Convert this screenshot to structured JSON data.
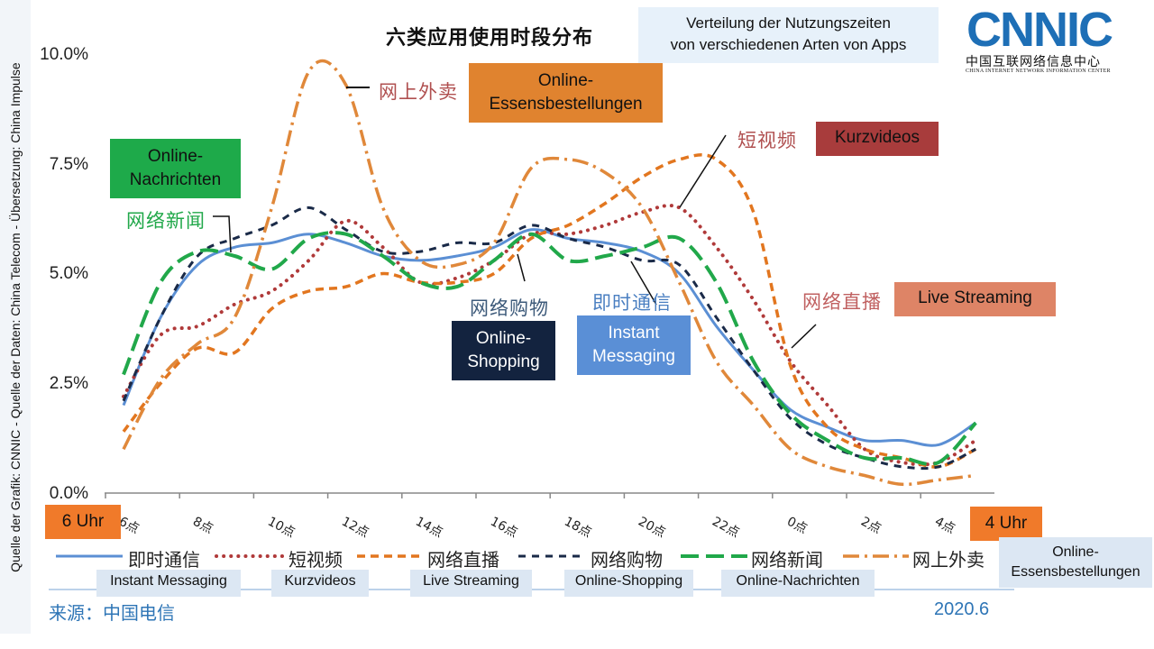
{
  "credit": "Quelle der Grafik: CNNIC  -  Quelle der Daten: China Telecom  -  Übersetzung: China Impulse",
  "logo": {
    "main": "CNNIC",
    "cn": "中国互联网络信息中心",
    "en": "CHINA INTERNET NETWORK INFORMATION CENTER"
  },
  "header": {
    "title": "六类应用使用时段分布",
    "subtitle_line1": "Verteilung der Nutzungszeiten",
    "subtitle_line2": "von verschiedenen Arten von Apps"
  },
  "range_labels": {
    "start": "6 Uhr",
    "end": "4 Uhr"
  },
  "annotations": {
    "im_cn": "即时通信",
    "im_de_1": "Instant",
    "im_de_2": "Messaging",
    "sv_cn": "短视频",
    "sv_de": "Kurzvideos",
    "ls_cn": "网络直播",
    "ls_de": "Live Streaming",
    "os_cn": "网络购物",
    "os_de_1": "Online-",
    "os_de_2": "Shopping",
    "news_cn": "网络新闻",
    "news_de_1": "Online-",
    "news_de_2": "Nachrichten",
    "food_cn": "网上外卖",
    "food_de_1": "Online-",
    "food_de_2": "Essensbestellungen"
  },
  "legend_extra": {
    "food_de_1": "Online-",
    "food_de_2": "Essensbestellungen"
  },
  "footer": {
    "source": "来源：中国电信",
    "date": "2020.6"
  },
  "colors": {
    "im": "#5b8fd4",
    "sv": "#b03a3a",
    "ls": "#e2761f",
    "os": "#1a2a48",
    "news": "#21a84a",
    "food": "#e0883a"
  },
  "chart_data": {
    "type": "line",
    "title": "六类应用使用时段分布",
    "ylim": [
      0,
      10
    ],
    "yticks": [
      "0.0%",
      "2.5%",
      "5.0%",
      "7.5%",
      "10.0%"
    ],
    "x": [
      6,
      7,
      8,
      9,
      10,
      11,
      12,
      13,
      14,
      15,
      16,
      17,
      18,
      19,
      20,
      21,
      22,
      23,
      0,
      1,
      2,
      3,
      4,
      5
    ],
    "xticks": [
      "6点",
      "8点",
      "10点",
      "12点",
      "14点",
      "16点",
      "18点",
      "20点",
      "22点",
      "0点",
      "2点",
      "4点"
    ],
    "series": [
      {
        "key": "im",
        "name": "即时通信",
        "translation": "Instant Messaging",
        "values": [
          2.0,
          4.0,
          5.2,
          5.6,
          5.7,
          5.9,
          5.7,
          5.4,
          5.3,
          5.4,
          5.6,
          6.0,
          5.8,
          5.7,
          5.5,
          5.0,
          3.8,
          2.8,
          1.9,
          1.5,
          1.2,
          1.2,
          1.1,
          1.6
        ]
      },
      {
        "key": "sv",
        "name": "短视频",
        "translation": "Kurzvideos",
        "values": [
          2.2,
          3.6,
          3.8,
          4.3,
          4.6,
          5.3,
          6.2,
          5.6,
          4.8,
          4.9,
          5.3,
          5.9,
          5.9,
          6.1,
          6.4,
          6.5,
          5.6,
          4.4,
          3.0,
          2.0,
          1.0,
          0.7,
          0.7,
          1.2
        ]
      },
      {
        "key": "ls",
        "name": "网络直播",
        "translation": "Live Streaming",
        "values": [
          1.4,
          2.5,
          3.3,
          3.2,
          4.2,
          4.6,
          4.7,
          5.0,
          4.8,
          4.8,
          5.0,
          5.8,
          6.1,
          6.6,
          7.2,
          7.6,
          7.6,
          6.4,
          2.9,
          1.5,
          1.0,
          0.8,
          0.6,
          1.0
        ]
      },
      {
        "key": "os",
        "name": "网络购物",
        "translation": "Online-Shopping",
        "values": [
          2.1,
          4.0,
          5.4,
          5.8,
          6.1,
          6.5,
          6.0,
          5.5,
          5.5,
          5.7,
          5.7,
          6.1,
          5.8,
          5.6,
          5.3,
          5.2,
          4.0,
          2.8,
          1.7,
          1.1,
          0.8,
          0.6,
          0.6,
          1.0
        ]
      },
      {
        "key": "news",
        "name": "网络新闻",
        "translation": "Online-Nachrichten",
        "values": [
          2.7,
          4.8,
          5.5,
          5.4,
          5.1,
          5.8,
          5.9,
          5.4,
          4.8,
          4.7,
          5.3,
          5.9,
          5.3,
          5.4,
          5.6,
          5.8,
          4.8,
          3.0,
          1.8,
          1.2,
          0.8,
          0.8,
          0.7,
          1.6
        ]
      },
      {
        "key": "food",
        "name": "网上外卖",
        "translation": "Online-Essensbestellungen",
        "values": [
          1.0,
          2.6,
          3.4,
          4.0,
          6.5,
          9.6,
          9.3,
          6.5,
          5.3,
          5.2,
          5.7,
          7.4,
          7.6,
          7.3,
          6.5,
          4.8,
          3.0,
          2.0,
          1.0,
          0.6,
          0.4,
          0.2,
          0.3,
          0.4
        ]
      }
    ],
    "grid": false,
    "legend": "bottom"
  }
}
